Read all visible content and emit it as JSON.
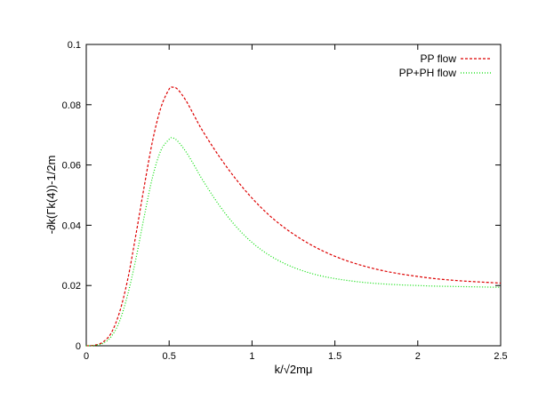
{
  "chart_data": {
    "type": "line",
    "xlabel": "k/√2mμ",
    "ylabel": "-∂k(Γk(4))-1/2m",
    "xlim": [
      0,
      2.5
    ],
    "ylim": [
      0,
      0.1
    ],
    "x_ticks": [
      "0",
      "0.5",
      "1",
      "1.5",
      "2",
      "2.5"
    ],
    "y_ticks": [
      "0",
      "0.02",
      "0.04",
      "0.06",
      "0.08",
      "0.1"
    ],
    "grid": false,
    "legend_position": "top-right",
    "series": [
      {
        "name": "PP flow",
        "color": "#dd0000",
        "style": "dashed",
        "x": [
          0,
          0.05,
          0.1,
          0.15,
          0.2,
          0.25,
          0.3,
          0.35,
          0.4,
          0.45,
          0.5,
          0.52,
          0.55,
          0.6,
          0.65,
          0.7,
          0.8,
          0.9,
          1.0,
          1.1,
          1.2,
          1.3,
          1.4,
          1.5,
          1.6,
          1.7,
          1.8,
          1.9,
          2.0,
          2.1,
          2.2,
          2.3,
          2.4,
          2.5
        ],
        "y": [
          0,
          0.0002,
          0.0012,
          0.0042,
          0.011,
          0.022,
          0.037,
          0.053,
          0.068,
          0.079,
          0.0852,
          0.0858,
          0.0852,
          0.0815,
          0.0765,
          0.0715,
          0.063,
          0.0555,
          0.049,
          0.0435,
          0.039,
          0.0353,
          0.0322,
          0.0297,
          0.0277,
          0.0261,
          0.0248,
          0.0238,
          0.023,
          0.0223,
          0.0218,
          0.0214,
          0.0211,
          0.0208
        ]
      },
      {
        "name": "PP+PH flow",
        "color": "#00dd00",
        "style": "dotted",
        "x": [
          0,
          0.05,
          0.1,
          0.15,
          0.2,
          0.25,
          0.3,
          0.35,
          0.4,
          0.45,
          0.5,
          0.52,
          0.55,
          0.6,
          0.65,
          0.7,
          0.8,
          0.9,
          1.0,
          1.1,
          1.2,
          1.3,
          1.4,
          1.5,
          1.6,
          1.7,
          1.8,
          1.9,
          2.0,
          2.1,
          2.2,
          2.3,
          2.4,
          2.5
        ],
        "y": [
          0,
          0.0001,
          0.0008,
          0.003,
          0.008,
          0.017,
          0.029,
          0.043,
          0.056,
          0.0648,
          0.0685,
          0.069,
          0.068,
          0.0645,
          0.06,
          0.0552,
          0.0468,
          0.0398,
          0.0343,
          0.0302,
          0.0272,
          0.025,
          0.0234,
          0.0223,
          0.0215,
          0.0209,
          0.0205,
          0.0202,
          0.02,
          0.0198,
          0.0197,
          0.0196,
          0.0195,
          0.0194
        ]
      }
    ]
  }
}
